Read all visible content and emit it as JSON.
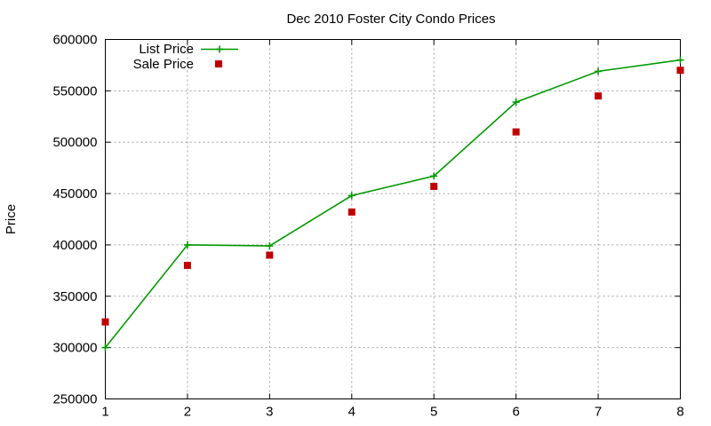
{
  "chart_data": {
    "type": "line",
    "title": "Dec 2010 Foster City Condo Prices",
    "xlabel": "",
    "ylabel": "Price",
    "x": [
      1,
      2,
      3,
      4,
      5,
      6,
      7,
      8
    ],
    "xlim": [
      1,
      8
    ],
    "ylim": [
      250000,
      600000
    ],
    "xticks": [
      "1",
      "2",
      "3",
      "4",
      "5",
      "6",
      "7",
      "8"
    ],
    "yticks": [
      "250000",
      "300000",
      "350000",
      "400000",
      "450000",
      "500000",
      "550000",
      "600000"
    ],
    "grid": true,
    "legend": "top-left",
    "series": [
      {
        "name": "List Price",
        "style": "line-with-plus",
        "color": "#009900",
        "values": [
          300000,
          400000,
          399000,
          448000,
          467000,
          539000,
          569000,
          580000
        ]
      },
      {
        "name": "Sale Price",
        "style": "square-points",
        "color": "#c00000",
        "values": [
          325000,
          380000,
          390000,
          432000,
          457000,
          510000,
          545000,
          570000
        ]
      }
    ]
  }
}
